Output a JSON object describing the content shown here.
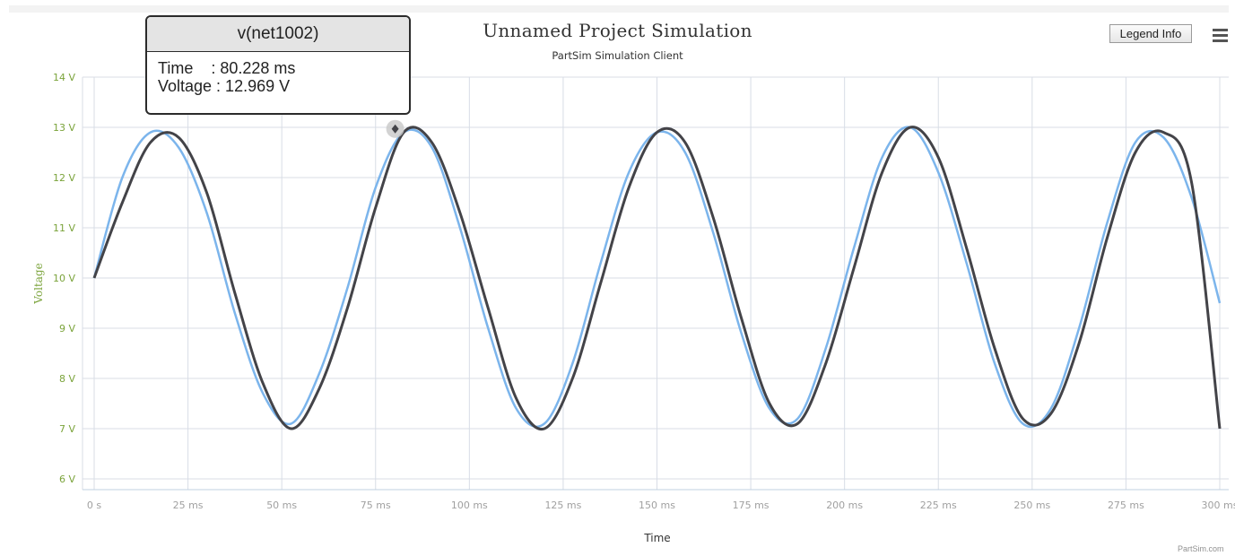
{
  "chart_data": {
    "type": "line",
    "title": "Unnamed Project Simulation",
    "subtitle": "PartSim Simulation Client",
    "xlabel": "Time",
    "ylabel": "Voltage",
    "xlim": [
      0,
      300
    ],
    "ylim": [
      6,
      14
    ],
    "x_tick_labels": [
      "0 s",
      "25 ms",
      "50 ms",
      "75 ms",
      "100 ms",
      "125 ms",
      "150 ms",
      "175 ms",
      "200 ms",
      "225 ms",
      "250 ms",
      "275 ms",
      "300 ms"
    ],
    "y_tick_labels": [
      "6 V",
      "7 V",
      "8 V",
      "9 V",
      "10 V",
      "11 V",
      "12 V",
      "13 V",
      "14 V"
    ],
    "grid": true,
    "series": [
      {
        "name": "",
        "color": "#7cb5ec",
        "x": [
          0,
          7.5,
          15,
          22.5,
          30,
          37.5,
          45,
          52.5,
          60,
          67.5,
          75,
          82.5,
          90,
          97.5,
          105,
          112.5,
          120,
          127.5,
          135,
          142.5,
          150,
          157.5,
          165,
          172.5,
          180,
          187.5,
          195,
          202.5,
          210,
          217.5,
          225,
          232.5,
          240,
          247.5,
          255,
          262.5,
          270,
          277.5,
          285,
          292.5,
          300
        ],
        "values": [
          10.0,
          12.0,
          12.9,
          12.6,
          11.3,
          9.3,
          7.7,
          7.1,
          8.1,
          9.8,
          11.8,
          12.9,
          12.6,
          11.0,
          9.0,
          7.4,
          7.1,
          8.3,
          10.3,
          12.1,
          12.9,
          12.5,
          10.9,
          8.9,
          7.4,
          7.2,
          8.6,
          10.6,
          12.4,
          13.0,
          12.1,
          10.3,
          8.3,
          7.1,
          7.4,
          9.0,
          11.1,
          12.7,
          12.8,
          11.6,
          9.5
        ]
      },
      {
        "name": "v(net1002)",
        "color": "#434348",
        "x": [
          0,
          7.5,
          15,
          22.5,
          30,
          37.5,
          45,
          52.5,
          60,
          67.5,
          75,
          82.5,
          90,
          97.5,
          105,
          112.5,
          120,
          127.5,
          135,
          142.5,
          150,
          157.5,
          165,
          172.5,
          180,
          187.5,
          195,
          202.5,
          210,
          217.5,
          225,
          232.5,
          240,
          247.5,
          255,
          262.5,
          270,
          277.5,
          285,
          292.5,
          300
        ],
        "values": [
          10.0,
          11.5,
          12.7,
          12.8,
          11.7,
          9.7,
          7.9,
          7.0,
          7.8,
          9.4,
          11.4,
          12.9,
          12.7,
          11.3,
          9.4,
          7.6,
          7.0,
          8.0,
          9.9,
          11.8,
          12.9,
          12.7,
          11.2,
          9.2,
          7.5,
          7.1,
          8.3,
          10.2,
          12.1,
          13.0,
          12.4,
          10.6,
          8.6,
          7.2,
          7.3,
          8.7,
          10.8,
          12.5,
          12.9,
          11.9,
          7.0
        ]
      }
    ]
  },
  "tooltip": {
    "series": "v(net1002)",
    "time_line": "Time    : 80.228 ms",
    "voltage_line": "Voltage : 12.969 V",
    "point_x": 80.228,
    "point_y": 12.969
  },
  "ui": {
    "legend_button": "Legend Info",
    "menu_icon": "hamburger-menu-icon",
    "credit": "PartSim.com"
  },
  "colors": {
    "axis_text": "#7aa33a",
    "grid": "#d8dde6"
  }
}
